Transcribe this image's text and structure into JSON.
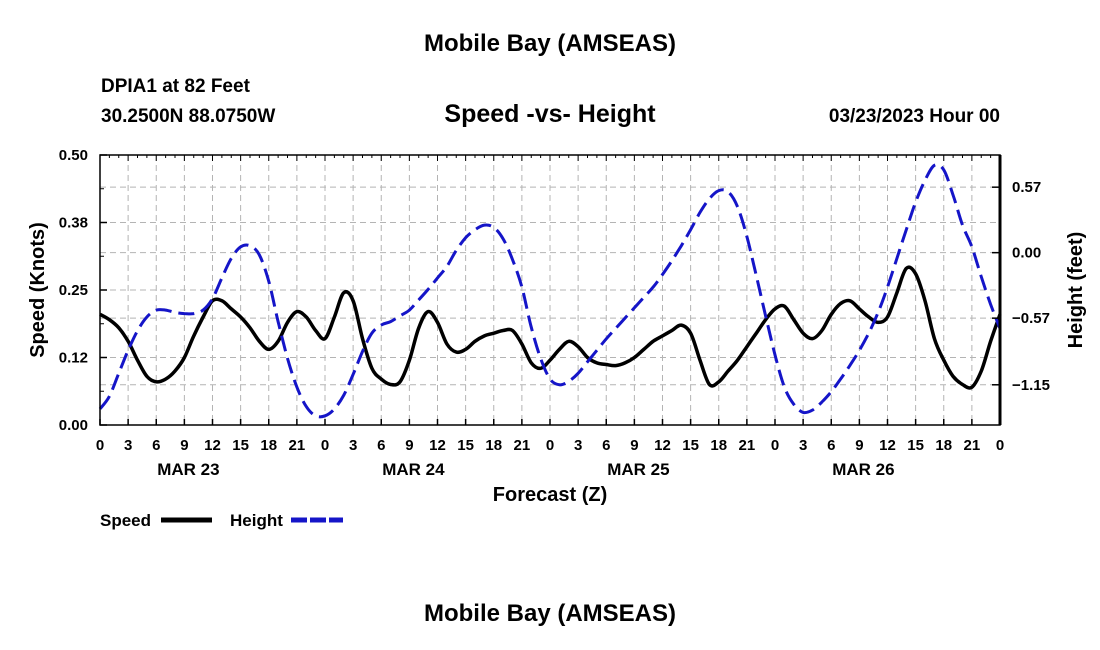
{
  "page_title": "Mobile Bay (AMSEAS)",
  "bottom_title": "Mobile Bay (AMSEAS)",
  "station": {
    "name": "DPIA1 at 82 Feet",
    "coords": "30.2500N  88.0750W"
  },
  "datetime": "03/23/2023 Hour 00",
  "legend": {
    "speed_label": "Speed",
    "height_label": "Height"
  },
  "colors": {
    "speed": "#000000",
    "height": "#1515c8",
    "grid": "#b4b4b4"
  },
  "chart_data": {
    "type": "line",
    "title": "Speed -vs- Height",
    "xlabel": "Forecast (Z)",
    "ylabel": "Speed (Knots)",
    "y2label": "Height (feet)",
    "xlim": [
      0,
      96
    ],
    "ylim": [
      0,
      0.5
    ],
    "y2lim": [
      -1.5,
      0.85
    ],
    "grid": true,
    "x_tick_labels": [
      "0",
      "3",
      "6",
      "9",
      "12",
      "15",
      "18",
      "21",
      "0",
      "3",
      "6",
      "9",
      "12",
      "15",
      "18",
      "21",
      "0",
      "3",
      "6",
      "9",
      "12",
      "15",
      "18",
      "21",
      "0",
      "3",
      "6",
      "9",
      "12",
      "15",
      "18",
      "21",
      "0"
    ],
    "day_labels": [
      "MAR 23",
      "MAR 24",
      "MAR 25",
      "MAR 26"
    ],
    "day_label_hours": [
      9,
      33,
      57,
      81
    ],
    "y_ticks": [
      0,
      0.125,
      0.25,
      0.375,
      0.5
    ],
    "y_tick_labels": [
      "0.00",
      "0.12",
      "0.25",
      "0.38",
      "0.50"
    ],
    "y2_ticks": [
      -1.15,
      -0.57,
      0.0,
      0.57
    ],
    "y2_tick_labels": [
      "-1.15",
      "-0.57",
      "0.00",
      "0.57"
    ],
    "series": [
      {
        "name": "Speed",
        "axis": "left",
        "x": [
          0,
          1,
          2,
          3,
          4,
          5,
          6,
          7,
          8,
          9,
          10,
          11,
          12,
          13,
          14,
          15,
          16,
          17,
          18,
          19,
          20,
          21,
          22,
          23,
          24,
          25,
          26,
          27,
          28,
          29,
          30,
          31,
          32,
          33,
          34,
          35,
          36,
          37,
          38,
          39,
          40,
          41,
          42,
          43,
          44,
          45,
          46,
          47,
          48,
          49,
          50,
          51,
          52,
          53,
          54,
          55,
          56,
          57,
          58,
          59,
          60,
          61,
          62,
          63,
          64,
          65,
          66,
          67,
          68,
          69,
          70,
          71,
          72,
          73,
          74,
          75,
          76,
          77,
          78,
          79,
          80,
          81,
          82,
          83,
          84,
          85,
          86,
          87,
          88,
          89,
          90,
          91,
          92,
          93,
          94,
          95,
          96
        ],
        "values": [
          0.205,
          0.195,
          0.18,
          0.155,
          0.12,
          0.09,
          0.08,
          0.085,
          0.1,
          0.125,
          0.165,
          0.2,
          0.23,
          0.23,
          0.215,
          0.2,
          0.18,
          0.155,
          0.14,
          0.155,
          0.19,
          0.21,
          0.2,
          0.175,
          0.16,
          0.2,
          0.245,
          0.23,
          0.16,
          0.105,
          0.085,
          0.075,
          0.08,
          0.12,
          0.18,
          0.21,
          0.19,
          0.15,
          0.135,
          0.14,
          0.155,
          0.165,
          0.17,
          0.175,
          0.175,
          0.15,
          0.115,
          0.105,
          0.12,
          0.14,
          0.155,
          0.145,
          0.125,
          0.115,
          0.112,
          0.11,
          0.115,
          0.125,
          0.14,
          0.155,
          0.165,
          0.175,
          0.185,
          0.17,
          0.12,
          0.075,
          0.08,
          0.1,
          0.12,
          0.145,
          0.17,
          0.195,
          0.215,
          0.22,
          0.195,
          0.17,
          0.16,
          0.175,
          0.205,
          0.225,
          0.23,
          0.215,
          0.2,
          0.19,
          0.2,
          0.245,
          0.29,
          0.28,
          0.23,
          0.16,
          0.12,
          0.09,
          0.075,
          0.07,
          0.1,
          0.155,
          0.205
        ],
        "color": "#000000",
        "style": "solid"
      },
      {
        "name": "Height",
        "axis": "right",
        "x": [
          0,
          1,
          2,
          3,
          4,
          5,
          6,
          7,
          8,
          9,
          10,
          11,
          12,
          13,
          14,
          15,
          16,
          17,
          18,
          19,
          20,
          21,
          22,
          23,
          24,
          25,
          26,
          27,
          28,
          29,
          30,
          31,
          32,
          33,
          34,
          35,
          36,
          37,
          38,
          39,
          40,
          41,
          42,
          43,
          44,
          45,
          46,
          47,
          48,
          49,
          50,
          51,
          52,
          53,
          54,
          55,
          56,
          57,
          58,
          59,
          60,
          61,
          62,
          63,
          64,
          65,
          66,
          67,
          68,
          69,
          70,
          71,
          72,
          73,
          74,
          75,
          76,
          77,
          78,
          79,
          80,
          81,
          82,
          83,
          84,
          85,
          86,
          87,
          88,
          89,
          90,
          91,
          92,
          93,
          94,
          95,
          96
        ],
        "values": [
          -1.36,
          -1.25,
          -1.05,
          -0.85,
          -0.68,
          -0.56,
          -0.5,
          -0.5,
          -0.52,
          -0.53,
          -0.53,
          -0.5,
          -0.4,
          -0.22,
          -0.05,
          0.05,
          0.06,
          -0.02,
          -0.25,
          -0.6,
          -0.92,
          -1.17,
          -1.34,
          -1.42,
          -1.42,
          -1.36,
          -1.24,
          -1.06,
          -0.86,
          -0.7,
          -0.63,
          -0.6,
          -0.55,
          -0.5,
          -0.41,
          -0.32,
          -0.22,
          -0.12,
          0.02,
          0.13,
          0.2,
          0.24,
          0.22,
          0.12,
          -0.06,
          -0.3,
          -0.65,
          -0.92,
          -1.1,
          -1.15,
          -1.12,
          -1.05,
          -0.95,
          -0.85,
          -0.75,
          -0.66,
          -0.57,
          -0.48,
          -0.39,
          -0.3,
          -0.19,
          -0.07,
          0.06,
          0.2,
          0.35,
          0.47,
          0.54,
          0.53,
          0.4,
          0.14,
          -0.2,
          -0.55,
          -0.89,
          -1.17,
          -1.32,
          -1.39,
          -1.37,
          -1.3,
          -1.21,
          -1.1,
          -0.98,
          -0.85,
          -0.7,
          -0.52,
          -0.3,
          -0.05,
          0.2,
          0.44,
          0.63,
          0.76,
          0.72,
          0.5,
          0.24,
          0.05,
          -0.21,
          -0.45,
          -0.66
        ],
        "color": "#1515c8",
        "style": "dashed"
      }
    ]
  }
}
